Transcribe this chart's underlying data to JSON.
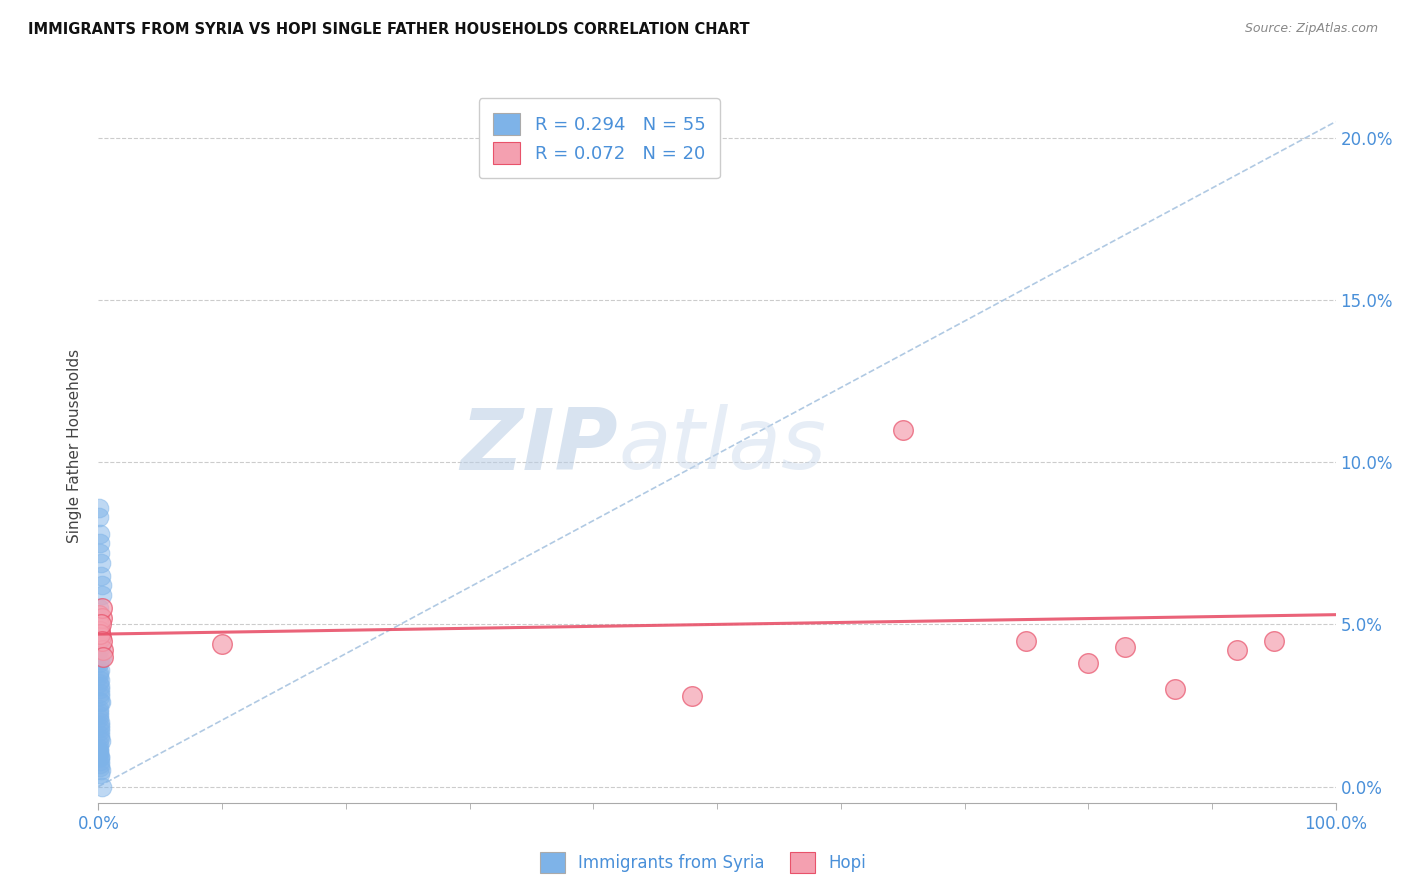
{
  "title": "IMMIGRANTS FROM SYRIA VS HOPI SINGLE FATHER HOUSEHOLDS CORRELATION CHART",
  "source": "Source: ZipAtlas.com",
  "ylabel": "Single Father Households",
  "ytick_vals": [
    0.0,
    5.0,
    10.0,
    15.0,
    20.0
  ],
  "xlim": [
    0.0,
    100.0
  ],
  "ylim": [
    -0.5,
    21.5
  ],
  "blue_R": 0.294,
  "blue_N": 55,
  "pink_R": 0.072,
  "pink_N": 20,
  "blue_color": "#7EB3E8",
  "pink_color": "#F4A0B0",
  "blue_line_color": "#4A90D9",
  "pink_line_color": "#E8526A",
  "dashed_line_color": "#A8C4E0",
  "grid_color": "#CCCCCC",
  "blue_points_x": [
    0.05,
    0.08,
    0.1,
    0.12,
    0.15,
    0.18,
    0.2,
    0.25,
    0.3,
    0.05,
    0.08,
    0.1,
    0.15,
    0.2,
    0.25,
    0.05,
    0.07,
    0.1,
    0.12,
    0.15,
    0.18,
    0.05,
    0.07,
    0.09,
    0.12,
    0.15,
    0.2,
    0.04,
    0.06,
    0.08,
    0.1,
    0.12,
    0.15,
    0.18,
    0.04,
    0.06,
    0.08,
    0.1,
    0.12,
    0.05,
    0.07,
    0.09,
    0.11,
    0.14,
    0.05,
    0.07,
    0.1,
    0.13,
    0.16,
    0.04,
    0.06,
    0.09,
    0.12,
    0.15,
    0.3
  ],
  "blue_points_y": [
    8.3,
    8.6,
    7.8,
    7.5,
    7.2,
    6.9,
    6.5,
    6.2,
    5.9,
    5.5,
    5.2,
    4.9,
    4.6,
    4.3,
    4.0,
    3.8,
    3.5,
    3.3,
    3.1,
    2.9,
    2.6,
    2.4,
    2.2,
    2.0,
    1.8,
    1.6,
    1.4,
    1.2,
    1.1,
    1.0,
    0.9,
    0.8,
    0.6,
    0.5,
    4.8,
    4.5,
    4.2,
    3.9,
    3.6,
    3.4,
    3.2,
    3.0,
    2.8,
    2.6,
    2.3,
    2.1,
    1.9,
    1.7,
    1.5,
    1.3,
    1.1,
    0.9,
    0.7,
    0.4,
    0.0
  ],
  "pink_points_x": [
    0.05,
    0.08,
    0.12,
    0.18,
    0.25,
    0.3,
    0.4,
    10.0,
    48.0,
    75.0,
    80.0,
    83.0,
    87.0,
    92.0,
    95.0,
    65.0,
    0.15,
    0.2,
    0.28,
    0.35
  ],
  "pink_points_y": [
    5.3,
    5.0,
    4.8,
    4.6,
    5.2,
    5.5,
    4.2,
    4.4,
    2.8,
    4.5,
    3.8,
    4.3,
    3.0,
    4.2,
    4.5,
    11.0,
    4.7,
    5.0,
    4.5,
    4.0
  ],
  "dashed_line_x": [
    0.0,
    100.0
  ],
  "dashed_line_y": [
    0.0,
    20.5
  ],
  "pink_trend_x": [
    0.0,
    100.0
  ],
  "pink_trend_y": [
    4.7,
    5.3
  ],
  "watermark_zip": "ZIP",
  "watermark_atlas": "atlas",
  "background_color": "#FFFFFF"
}
